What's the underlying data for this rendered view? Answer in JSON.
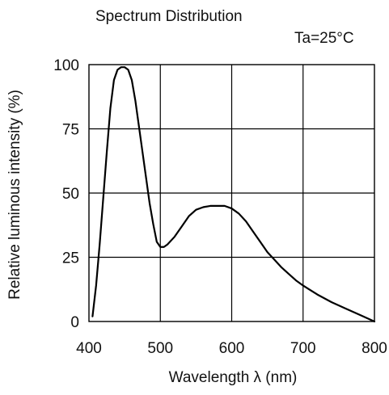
{
  "chart_data": {
    "type": "line",
    "title": "Spectrum Distribution",
    "annotation": "Ta=25°C",
    "xlabel": "Wavelength λ (nm)",
    "ylabel": "Relative luminous intensity (%)",
    "xlim": [
      400,
      800
    ],
    "ylim": [
      0,
      100
    ],
    "x_ticks": [
      400,
      500,
      600,
      700,
      800
    ],
    "y_ticks": [
      0,
      25,
      50,
      75,
      100
    ],
    "x_tick_labels": [
      "400",
      "500",
      "600",
      "700",
      "800"
    ],
    "y_tick_labels": [
      "0",
      "25",
      "50",
      "75",
      "100"
    ],
    "grid": true,
    "line_color": "#000000",
    "series": [
      {
        "x": [
          405,
          410,
          415,
          420,
          425,
          430,
          435,
          440,
          445,
          450,
          455,
          460,
          465,
          470,
          475,
          480,
          485,
          490,
          495,
          500,
          505,
          510,
          520,
          530,
          540,
          550,
          560,
          570,
          580,
          590,
          600,
          610,
          620,
          630,
          640,
          650,
          660,
          670,
          680,
          690,
          700,
          720,
          740,
          760,
          780,
          800
        ],
        "y": [
          2,
          14,
          30,
          48,
          66,
          83,
          94,
          98,
          99,
          99,
          98,
          94,
          86,
          76,
          66,
          56,
          46,
          38,
          31,
          29,
          29,
          30,
          33,
          37,
          41,
          43.5,
          44.5,
          45,
          45,
          45,
          44,
          42,
          39,
          35,
          31,
          27,
          24,
          21,
          18.5,
          16,
          14,
          10.5,
          7.5,
          5,
          2.5,
          0
        ]
      }
    ]
  }
}
